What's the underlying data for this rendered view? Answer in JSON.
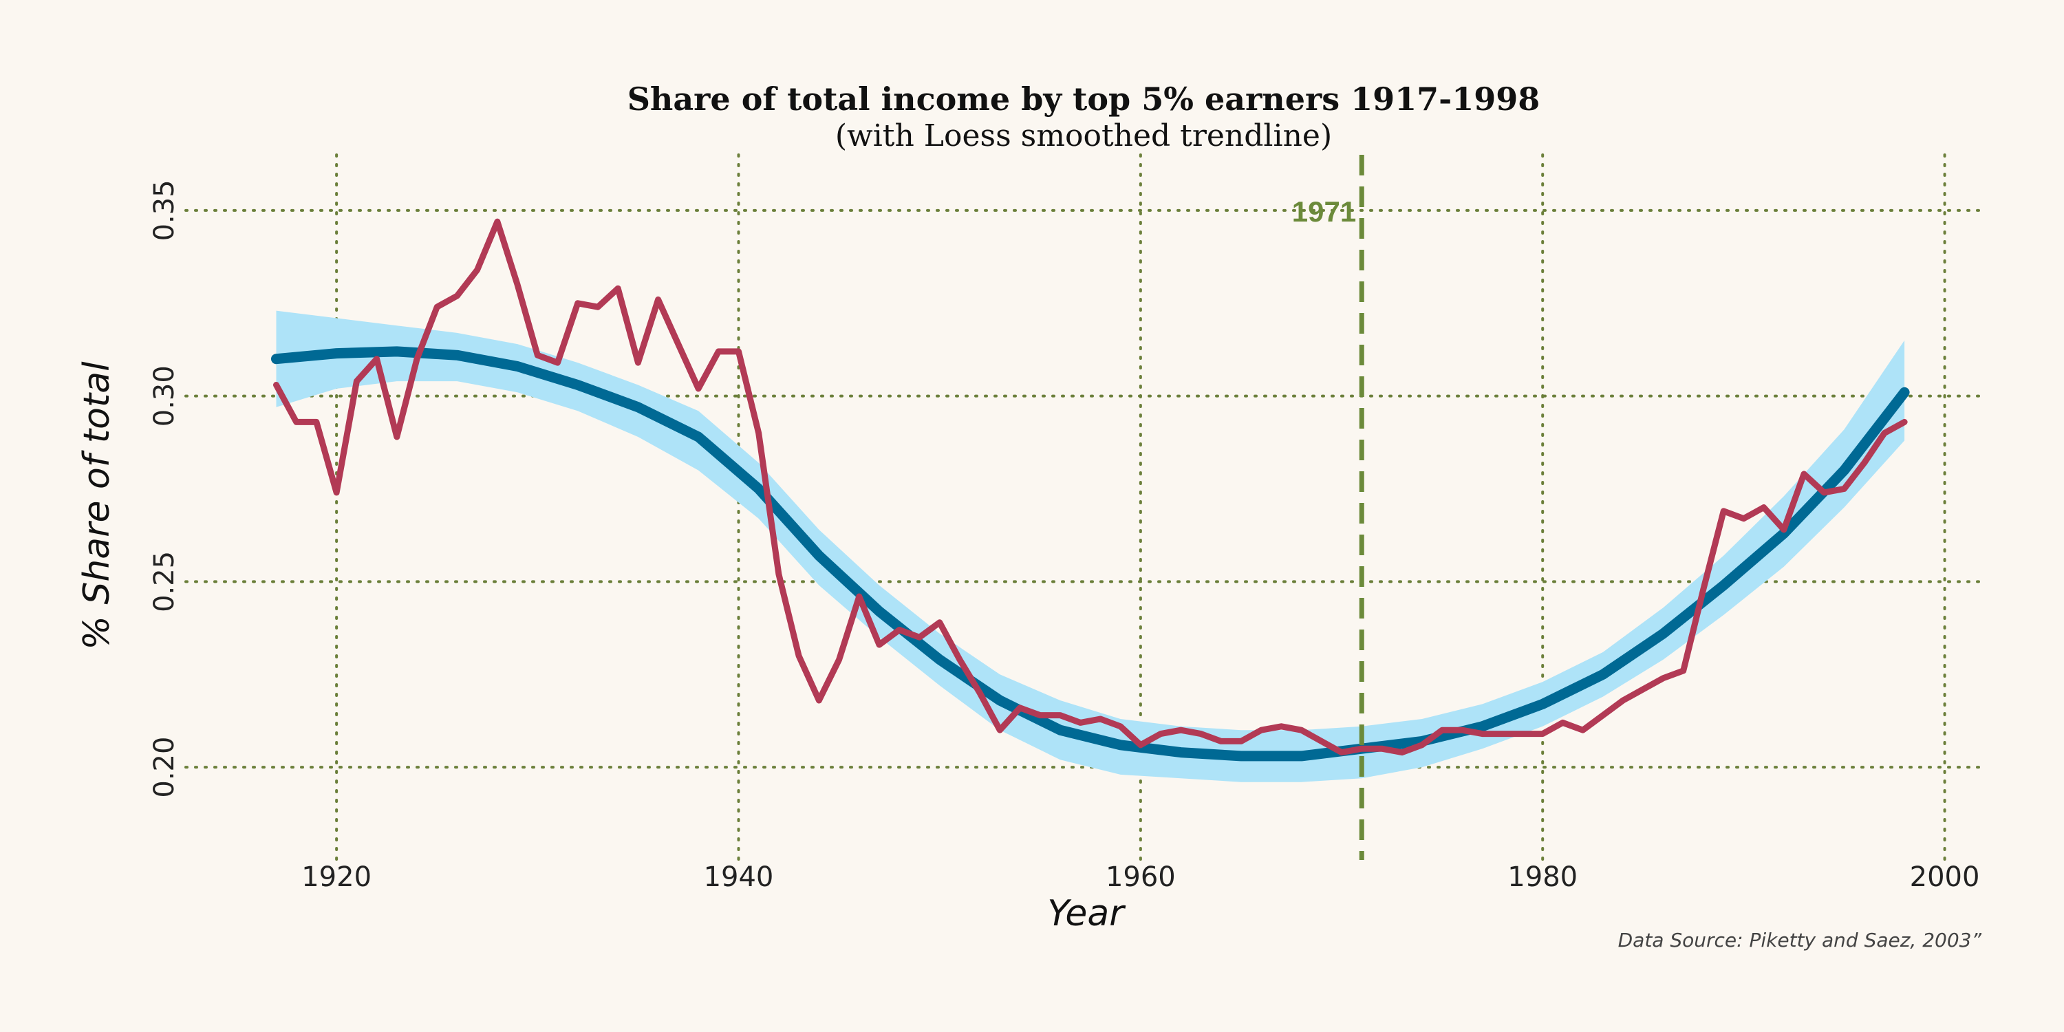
{
  "colors": {
    "background": "#fbf7f1",
    "grid": "#6b7f3a",
    "raw_series": "#b23a55",
    "trend_line": "#006994",
    "confidence_band": "#aee3f8",
    "annotation": "#6b8a3a"
  },
  "chart_data": {
    "type": "line",
    "title": "Share of total income by top 5% earners 1917-1998",
    "subtitle": "(with Loess smoothed trendline)",
    "xlabel": "Year",
    "ylabel": "% Share of total",
    "caption": "Data Source: Piketty and Saez, 2003”",
    "xlim": [
      1912.5,
      2002
    ],
    "ylim": [
      0.175,
      0.365
    ],
    "x_ticks": [
      1920,
      1940,
      1960,
      1980,
      2000
    ],
    "y_ticks": [
      0.2,
      0.25,
      0.3,
      0.35
    ],
    "y_tick_labels": [
      "0.20",
      "0.25",
      "0.30",
      "0.35"
    ],
    "grid": "dotted",
    "annotations": [
      {
        "x": 1971,
        "label": "1971",
        "style": "dashed-vertical-line"
      }
    ],
    "series": [
      {
        "role": "raw",
        "x": [
          1917,
          1918,
          1919,
          1920,
          1921,
          1922,
          1923,
          1924,
          1925,
          1926,
          1927,
          1928,
          1929,
          1930,
          1931,
          1932,
          1933,
          1934,
          1935,
          1936,
          1937,
          1938,
          1939,
          1940,
          1941,
          1942,
          1943,
          1944,
          1945,
          1946,
          1947,
          1948,
          1949,
          1950,
          1951,
          1952,
          1953,
          1954,
          1955,
          1956,
          1957,
          1958,
          1959,
          1960,
          1961,
          1962,
          1963,
          1964,
          1965,
          1966,
          1967,
          1968,
          1969,
          1970,
          1971,
          1972,
          1973,
          1974,
          1975,
          1976,
          1977,
          1978,
          1979,
          1980,
          1981,
          1982,
          1983,
          1984,
          1985,
          1986,
          1987,
          1988,
          1989,
          1990,
          1991,
          1992,
          1993,
          1994,
          1995,
          1996,
          1997,
          1998
        ],
        "values": [
          0.303,
          0.293,
          0.293,
          0.274,
          0.304,
          0.31,
          0.289,
          0.31,
          0.324,
          0.327,
          0.334,
          0.347,
          0.33,
          0.311,
          0.309,
          0.325,
          0.324,
          0.329,
          0.309,
          0.326,
          0.314,
          0.302,
          0.312,
          0.312,
          0.29,
          0.252,
          0.23,
          0.218,
          0.229,
          0.246,
          0.233,
          0.237,
          0.235,
          0.239,
          0.229,
          0.22,
          0.21,
          0.216,
          0.214,
          0.214,
          0.212,
          0.213,
          0.211,
          0.206,
          0.209,
          0.21,
          0.209,
          0.207,
          0.207,
          0.21,
          0.211,
          0.21,
          0.207,
          0.204,
          0.205,
          0.205,
          0.204,
          0.206,
          0.21,
          0.21,
          0.209,
          0.209,
          0.209,
          0.209,
          0.212,
          0.21,
          0.214,
          0.218,
          0.221,
          0.224,
          0.226,
          0.248,
          0.269,
          0.267,
          0.27,
          0.264,
          0.279,
          0.274,
          0.275,
          0.282,
          0.29,
          0.293
        ]
      },
      {
        "role": "loess",
        "x": [
          1917,
          1920,
          1923,
          1926,
          1929,
          1932,
          1935,
          1938,
          1941,
          1944,
          1947,
          1950,
          1953,
          1956,
          1959,
          1962,
          1965,
          1968,
          1971,
          1974,
          1977,
          1980,
          1983,
          1986,
          1989,
          1992,
          1995,
          1998
        ],
        "values": [
          0.31,
          0.3115,
          0.312,
          0.311,
          0.308,
          0.303,
          0.297,
          0.289,
          0.275,
          0.257,
          0.242,
          0.229,
          0.218,
          0.21,
          0.206,
          0.204,
          0.203,
          0.203,
          0.205,
          0.207,
          0.211,
          0.217,
          0.225,
          0.236,
          0.249,
          0.263,
          0.28,
          0.301
        ],
        "lower": [
          0.297,
          0.302,
          0.304,
          0.304,
          0.301,
          0.296,
          0.289,
          0.28,
          0.267,
          0.249,
          0.235,
          0.222,
          0.21,
          0.202,
          0.198,
          0.197,
          0.196,
          0.196,
          0.197,
          0.2,
          0.205,
          0.211,
          0.219,
          0.229,
          0.241,
          0.254,
          0.27,
          0.288
        ],
        "upper": [
          0.323,
          0.321,
          0.319,
          0.317,
          0.314,
          0.309,
          0.303,
          0.296,
          0.282,
          0.264,
          0.249,
          0.236,
          0.225,
          0.218,
          0.213,
          0.211,
          0.21,
          0.21,
          0.211,
          0.213,
          0.217,
          0.223,
          0.231,
          0.243,
          0.257,
          0.273,
          0.291,
          0.315
        ]
      }
    ]
  }
}
